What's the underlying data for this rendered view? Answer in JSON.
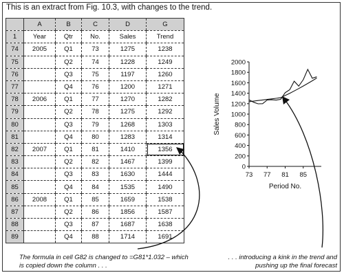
{
  "intro": "This is an extract from Fig. 10.3, with changes to the trend.",
  "sheet": {
    "column_letters": [
      "",
      "A",
      "B",
      "C",
      "D",
      "G"
    ],
    "header_row": [
      "1",
      "Year",
      "Qtr",
      "No.",
      "Sales",
      "Trend"
    ],
    "rows": [
      [
        "74",
        "2005",
        "Q1",
        "73",
        "1275",
        "1238"
      ],
      [
        "75",
        "",
        "Q2",
        "74",
        "1228",
        "1249"
      ],
      [
        "76",
        "",
        "Q3",
        "75",
        "1197",
        "1260"
      ],
      [
        "77",
        "",
        "Q4",
        "76",
        "1200",
        "1271"
      ],
      [
        "78",
        "2006",
        "Q1",
        "77",
        "1270",
        "1282"
      ],
      [
        "79",
        "",
        "Q2",
        "78",
        "1275",
        "1292"
      ],
      [
        "80",
        "",
        "Q3",
        "79",
        "1268",
        "1303"
      ],
      [
        "81",
        "",
        "Q4",
        "80",
        "1283",
        "1314"
      ],
      [
        "82",
        "2007",
        "Q1",
        "81",
        "1410",
        "1356"
      ],
      [
        "83",
        "",
        "Q2",
        "82",
        "1467",
        "1399"
      ],
      [
        "84",
        "",
        "Q3",
        "83",
        "1630",
        "1444"
      ],
      [
        "85",
        "",
        "Q4",
        "84",
        "1535",
        "1490"
      ],
      [
        "86",
        "2008",
        "Q1",
        "85",
        "1659",
        "1538"
      ],
      [
        "87",
        "",
        "Q2",
        "86",
        "1856",
        "1587"
      ],
      [
        "88",
        "",
        "Q3",
        "87",
        "1687",
        "1638"
      ],
      [
        "89",
        "",
        "Q4",
        "88",
        "1714",
        "1691"
      ]
    ],
    "selected_cell": "G82"
  },
  "note_left": "The formula in cell G82 is changed to =G81*1.032 – which is copied down the column . . .",
  "note_right": ". . . introducing a kink in the trend and pushing up the final forecast",
  "chart_data": {
    "type": "line",
    "xlabel": "Period No.",
    "ylabel": "Sales Volume",
    "xlim": [
      73,
      89
    ],
    "ylim": [
      0,
      2000
    ],
    "x_ticks": [
      "73",
      "77",
      "81",
      "85"
    ],
    "y_ticks": [
      "0",
      "200",
      "400",
      "600",
      "800",
      "1000",
      "1200",
      "1400",
      "1600",
      "1800",
      "2000"
    ],
    "series": [
      {
        "x": [
          73,
          74,
          75,
          76,
          77,
          78,
          79,
          80,
          81,
          82,
          83,
          84,
          85,
          86,
          87,
          88
        ],
        "values": [
          1275,
          1228,
          1197,
          1200,
          1270,
          1275,
          1268,
          1283,
          1410,
          1467,
          1630,
          1535,
          1659,
          1856,
          1687,
          1714
        ]
      },
      {
        "x": [
          73,
          74,
          75,
          76,
          77,
          78,
          79,
          80,
          81,
          82,
          83,
          84,
          85,
          86,
          87,
          88
        ],
        "values": [
          1238,
          1249,
          1260,
          1271,
          1282,
          1292,
          1303,
          1314,
          1356,
          1399,
          1444,
          1490,
          1538,
          1587,
          1638,
          1691
        ]
      }
    ]
  }
}
